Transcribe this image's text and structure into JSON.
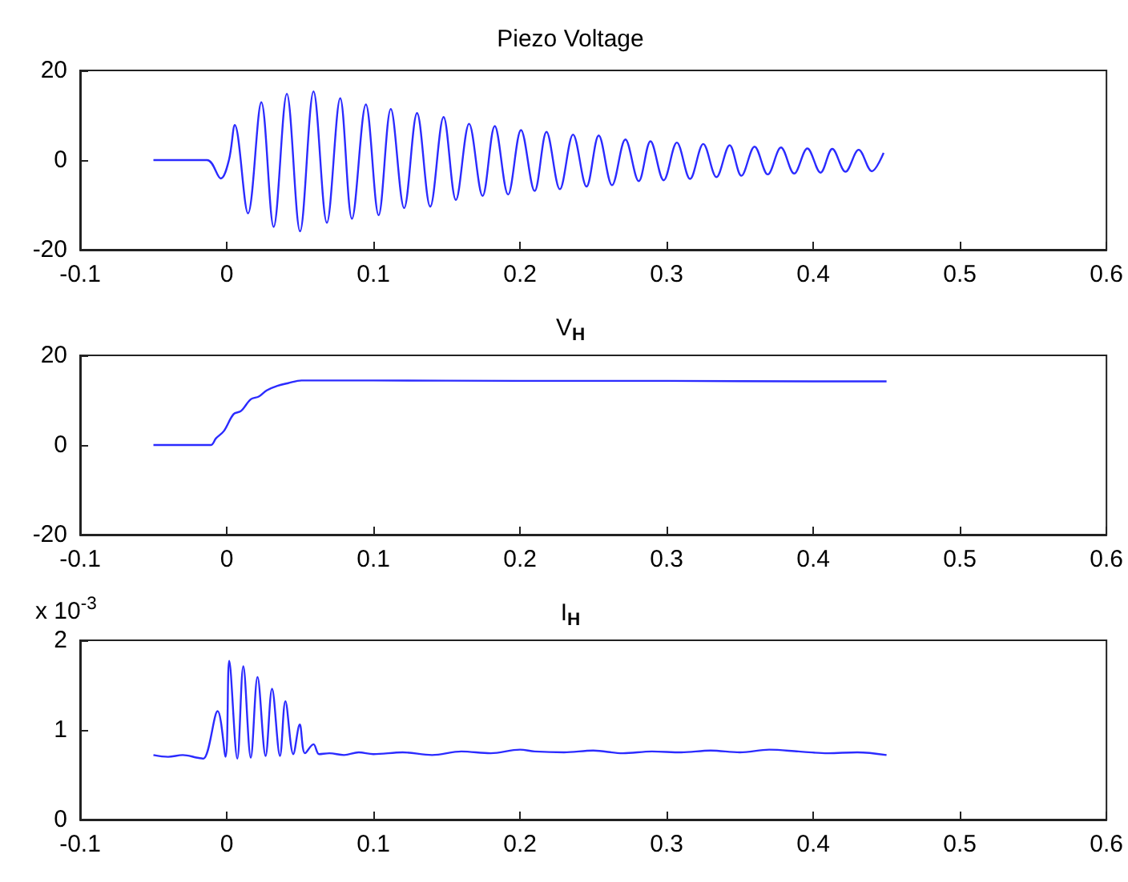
{
  "chart_data": [
    {
      "type": "line",
      "title": "Piezo Voltage",
      "color": "#2b2bff",
      "xlim": [
        -0.1,
        0.6
      ],
      "xticks": [
        -0.1,
        0,
        0.1,
        0.2,
        0.3,
        0.4,
        0.5,
        0.6
      ],
      "ylim": [
        -20,
        20
      ],
      "yticks": [
        -20,
        0,
        20
      ],
      "x": [
        -0.05,
        -0.0135,
        -0.004,
        0.0015,
        0.0055,
        0.0145,
        0.0236,
        0.032,
        0.041,
        0.05,
        0.0592,
        0.0683,
        0.0774,
        0.0854,
        0.0949,
        0.1036,
        0.1119,
        0.121,
        0.1298,
        0.1388,
        0.1479,
        0.1563,
        0.1653,
        0.1745,
        0.1828,
        0.1919,
        0.2007,
        0.21,
        0.2181,
        0.2272,
        0.2362,
        0.2454,
        0.2537,
        0.2628,
        0.2719,
        0.281,
        0.289,
        0.298,
        0.307,
        0.316,
        0.325,
        0.334,
        0.343,
        0.351,
        0.36,
        0.369,
        0.378,
        0.387,
        0.396,
        0.405,
        0.413,
        0.422,
        0.431,
        0.44,
        0.448
      ],
      "values": [
        0,
        0,
        -4.1,
        0,
        7.8,
        -11.9,
        12.9,
        -14.9,
        14.8,
        -15.9,
        15.3,
        -14.0,
        13.8,
        -13.1,
        12.4,
        -12.3,
        11.4,
        -10.7,
        10.5,
        -10.4,
        9.6,
        -8.9,
        8.1,
        -8.0,
        7.6,
        -7.7,
        6.7,
        -6.9,
        6.3,
        -6.5,
        5.7,
        -5.9,
        5.5,
        -5.6,
        4.6,
        -4.7,
        4.2,
        -4.5,
        3.9,
        -4.2,
        3.6,
        -3.8,
        3.3,
        -3.5,
        3.0,
        -3.2,
        2.8,
        -3.0,
        2.6,
        -2.8,
        2.5,
        -2.6,
        2.3,
        -2.5,
        1.6
      ]
    },
    {
      "type": "line",
      "title": "V$_{H}$",
      "color": "#2b2bff",
      "xlim": [
        -0.1,
        0.6
      ],
      "xticks": [
        -0.1,
        0,
        0.1,
        0.2,
        0.3,
        0.4,
        0.5,
        0.6
      ],
      "ylim": [
        -20,
        20
      ],
      "yticks": [
        -20,
        0,
        20
      ],
      "x": [
        -0.05,
        -0.011,
        -0.0073,
        -0.002,
        0.0047,
        0.0098,
        0.0164,
        0.0218,
        0.0273,
        0.0345,
        0.0418,
        0.051,
        0.1,
        0.2,
        0.3,
        0.4,
        0.45
      ],
      "values": [
        0,
        0,
        1.5,
        3.1,
        6.9,
        7.6,
        10.2,
        10.8,
        12.2,
        13.2,
        13.8,
        14.4,
        14.4,
        14.3,
        14.3,
        14.2,
        14.2
      ]
    },
    {
      "type": "line",
      "title": "I$_{H}$",
      "annotations": [
        "x 10$^{-3}$"
      ],
      "color": "#2b2bff",
      "xlim": [
        -0.1,
        0.6
      ],
      "xticks": [
        -0.1,
        0,
        0.1,
        0.2,
        0.3,
        0.4,
        0.5,
        0.6
      ],
      "ylim": [
        0,
        2
      ],
      "yticks": [
        0,
        1,
        2
      ],
      "x": [
        -0.05,
        -0.04,
        -0.03,
        -0.02,
        -0.016,
        -0.0062,
        -0.0008,
        0.0017,
        0.0072,
        0.0113,
        0.0164,
        0.021,
        0.0265,
        0.0309,
        0.0363,
        0.04,
        0.0454,
        0.0498,
        0.0534,
        0.0592,
        0.063,
        0.07,
        0.08,
        0.09,
        0.1,
        0.12,
        0.14,
        0.16,
        0.18,
        0.2,
        0.21,
        0.23,
        0.25,
        0.27,
        0.29,
        0.31,
        0.33,
        0.35,
        0.37,
        0.39,
        0.41,
        0.43,
        0.45
      ],
      "values": [
        0.72,
        0.7,
        0.72,
        0.69,
        0.68,
        1.21,
        0.7,
        1.77,
        0.68,
        1.71,
        0.69,
        1.59,
        0.71,
        1.46,
        0.71,
        1.32,
        0.73,
        1.06,
        0.74,
        0.84,
        0.73,
        0.74,
        0.72,
        0.75,
        0.73,
        0.75,
        0.72,
        0.76,
        0.74,
        0.78,
        0.76,
        0.75,
        0.77,
        0.74,
        0.76,
        0.75,
        0.77,
        0.75,
        0.78,
        0.76,
        0.74,
        0.75,
        0.72
      ]
    }
  ]
}
